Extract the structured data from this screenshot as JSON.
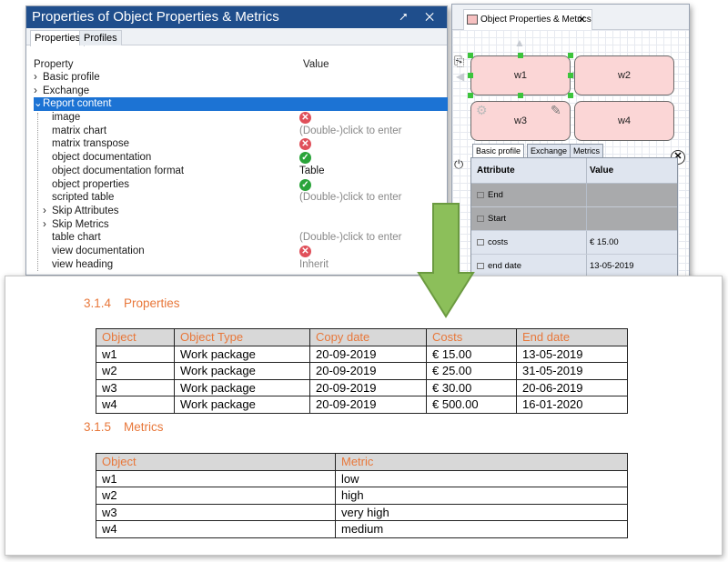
{
  "properties_panel": {
    "title": "Properties of Object Properties & Metrics",
    "title_controls": "⭧ ✕",
    "tabs": [
      "Properties",
      "Profiles"
    ],
    "col_property": "Property",
    "col_value": "Value",
    "rows": [
      {
        "label": "Basic profile",
        "value": "",
        "status": ""
      },
      {
        "label": "Exchange",
        "value": "",
        "status": ""
      },
      {
        "label": "Report content",
        "value": "",
        "status": ""
      },
      {
        "label": "image",
        "value": "",
        "status": "x"
      },
      {
        "label": "matrix chart",
        "value": "(Double-)click to enter",
        "status": ""
      },
      {
        "label": "matrix transpose",
        "value": "",
        "status": "x"
      },
      {
        "label": "object documentation",
        "value": "",
        "status": "ok"
      },
      {
        "label": "object documentation format",
        "value": "Table",
        "status": ""
      },
      {
        "label": "object properties",
        "value": "",
        "status": "ok"
      },
      {
        "label": "scripted table",
        "value": "(Double-)click to enter",
        "status": ""
      },
      {
        "label": "Skip Attributes",
        "value": "",
        "status": ""
      },
      {
        "label": "Skip Metrics",
        "value": "",
        "status": ""
      },
      {
        "label": "table chart",
        "value": "(Double-)click to enter",
        "status": ""
      },
      {
        "label": "view documentation",
        "value": "",
        "status": "x"
      },
      {
        "label": "view heading",
        "value": "Inherit",
        "status": ""
      }
    ]
  },
  "diagram_panel": {
    "tab_title": "Object Properties & Metrics",
    "nodes": [
      "w1",
      "w2",
      "w3",
      "w4"
    ],
    "attr_tabs": [
      "Basic profile",
      "Exchange",
      "Metrics"
    ],
    "attr_header": [
      "Attribute",
      "Value"
    ],
    "attr_rows": [
      {
        "name": "End",
        "value": ""
      },
      {
        "name": "Start",
        "value": ""
      },
      {
        "name": "costs",
        "value": "€ 15.00"
      },
      {
        "name": "end date",
        "value": "13-05-2019"
      }
    ]
  },
  "arrow_color": "#8cbf5a",
  "document": {
    "section1_num": "3.1.4",
    "section1_title": "Properties",
    "table1_headers": [
      "Object",
      "Object Type",
      "Copy date",
      "Costs",
      "End date"
    ],
    "table1_rows": [
      [
        "w1",
        "Work package",
        "20-09-2019",
        "€ 15.00",
        "13-05-2019"
      ],
      [
        "w2",
        "Work package",
        "20-09-2019",
        "€ 25.00",
        "31-05-2019"
      ],
      [
        "w3",
        "Work package",
        "20-09-2019",
        "€ 30.00",
        "20-06-2019"
      ],
      [
        "w4",
        "Work package",
        "20-09-2019",
        "€ 500.00",
        "16-01-2020"
      ]
    ],
    "section2_num": "3.1.5",
    "section2_title": "Metrics",
    "table2_headers": [
      "Object",
      "Metric"
    ],
    "table2_rows": [
      [
        "w1",
        "low"
      ],
      [
        "w2",
        "high"
      ],
      [
        "w3",
        "very high"
      ],
      [
        "w4",
        "medium"
      ]
    ]
  }
}
